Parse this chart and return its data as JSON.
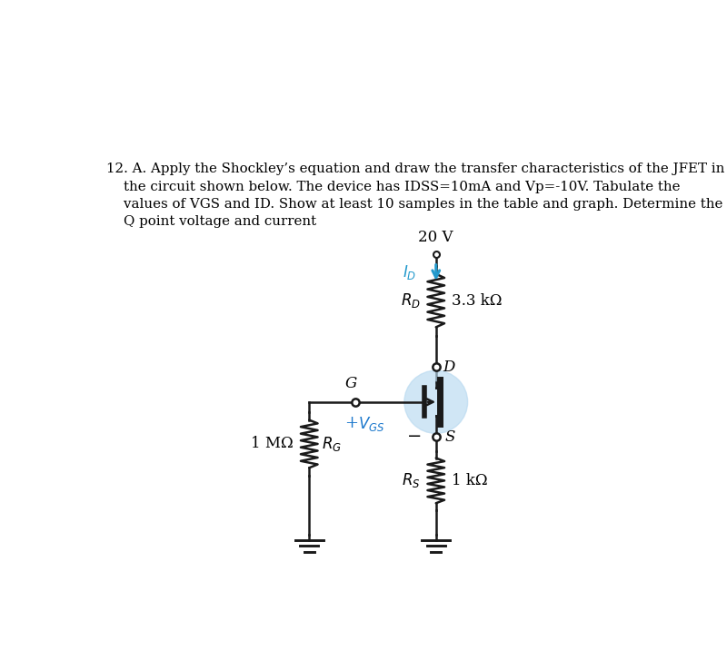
{
  "bg_color": "#ffffff",
  "voltage_label": "20 V",
  "RD_value": "3.3 kΩ",
  "RS_value": "1 kΩ",
  "RG_label": "1 MΩ",
  "transistor_circle_color": "#b8d9f0",
  "transistor_circle_alpha": 0.65,
  "line_color": "#1a1a1a",
  "cyan_color": "#2299cc",
  "text_line1": "12. A. Apply the Shockley’s equation and draw the transfer characteristics of the JFET in",
  "text_line2": "    the circuit shown below. The device has IDSS=10mA and Vp=-10V. Tabulate the",
  "text_line3": "    values of VGS and ID. Show at least 10 samples in the table and graph. Determine the",
  "text_line4": "    Q point voltage and current"
}
